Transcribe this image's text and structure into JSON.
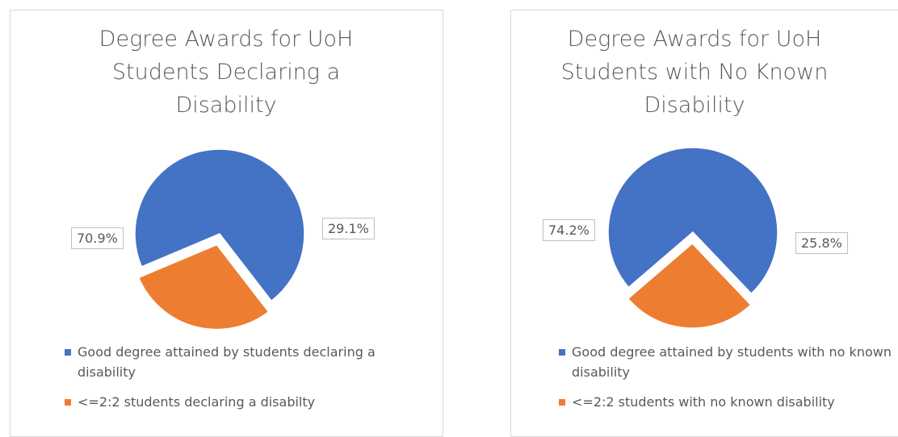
{
  "chart_data": [
    {
      "type": "pie",
      "title": "Degree Awards for UoH Students Declaring a Disability",
      "categories": [
        "Good degree attained by students declaring a disability",
        "<=2:2 students declaring a disabilty"
      ],
      "values": [
        70.9,
        29.1
      ],
      "value_labels": [
        "70.9%",
        "29.1%"
      ],
      "colors": [
        "#4472c4",
        "#ed7d31"
      ],
      "legend": "bottom"
    },
    {
      "type": "pie",
      "title": "Degree Awards for UoH Students with No Known Disability",
      "categories": [
        "Good degree attained by students with no known disability",
        "<=2:2 students with no known disability"
      ],
      "values": [
        74.2,
        25.8
      ],
      "value_labels": [
        "74.2%",
        "25.8%"
      ],
      "colors": [
        "#4472c4",
        "#ed7d31"
      ],
      "legend": "bottom"
    }
  ]
}
